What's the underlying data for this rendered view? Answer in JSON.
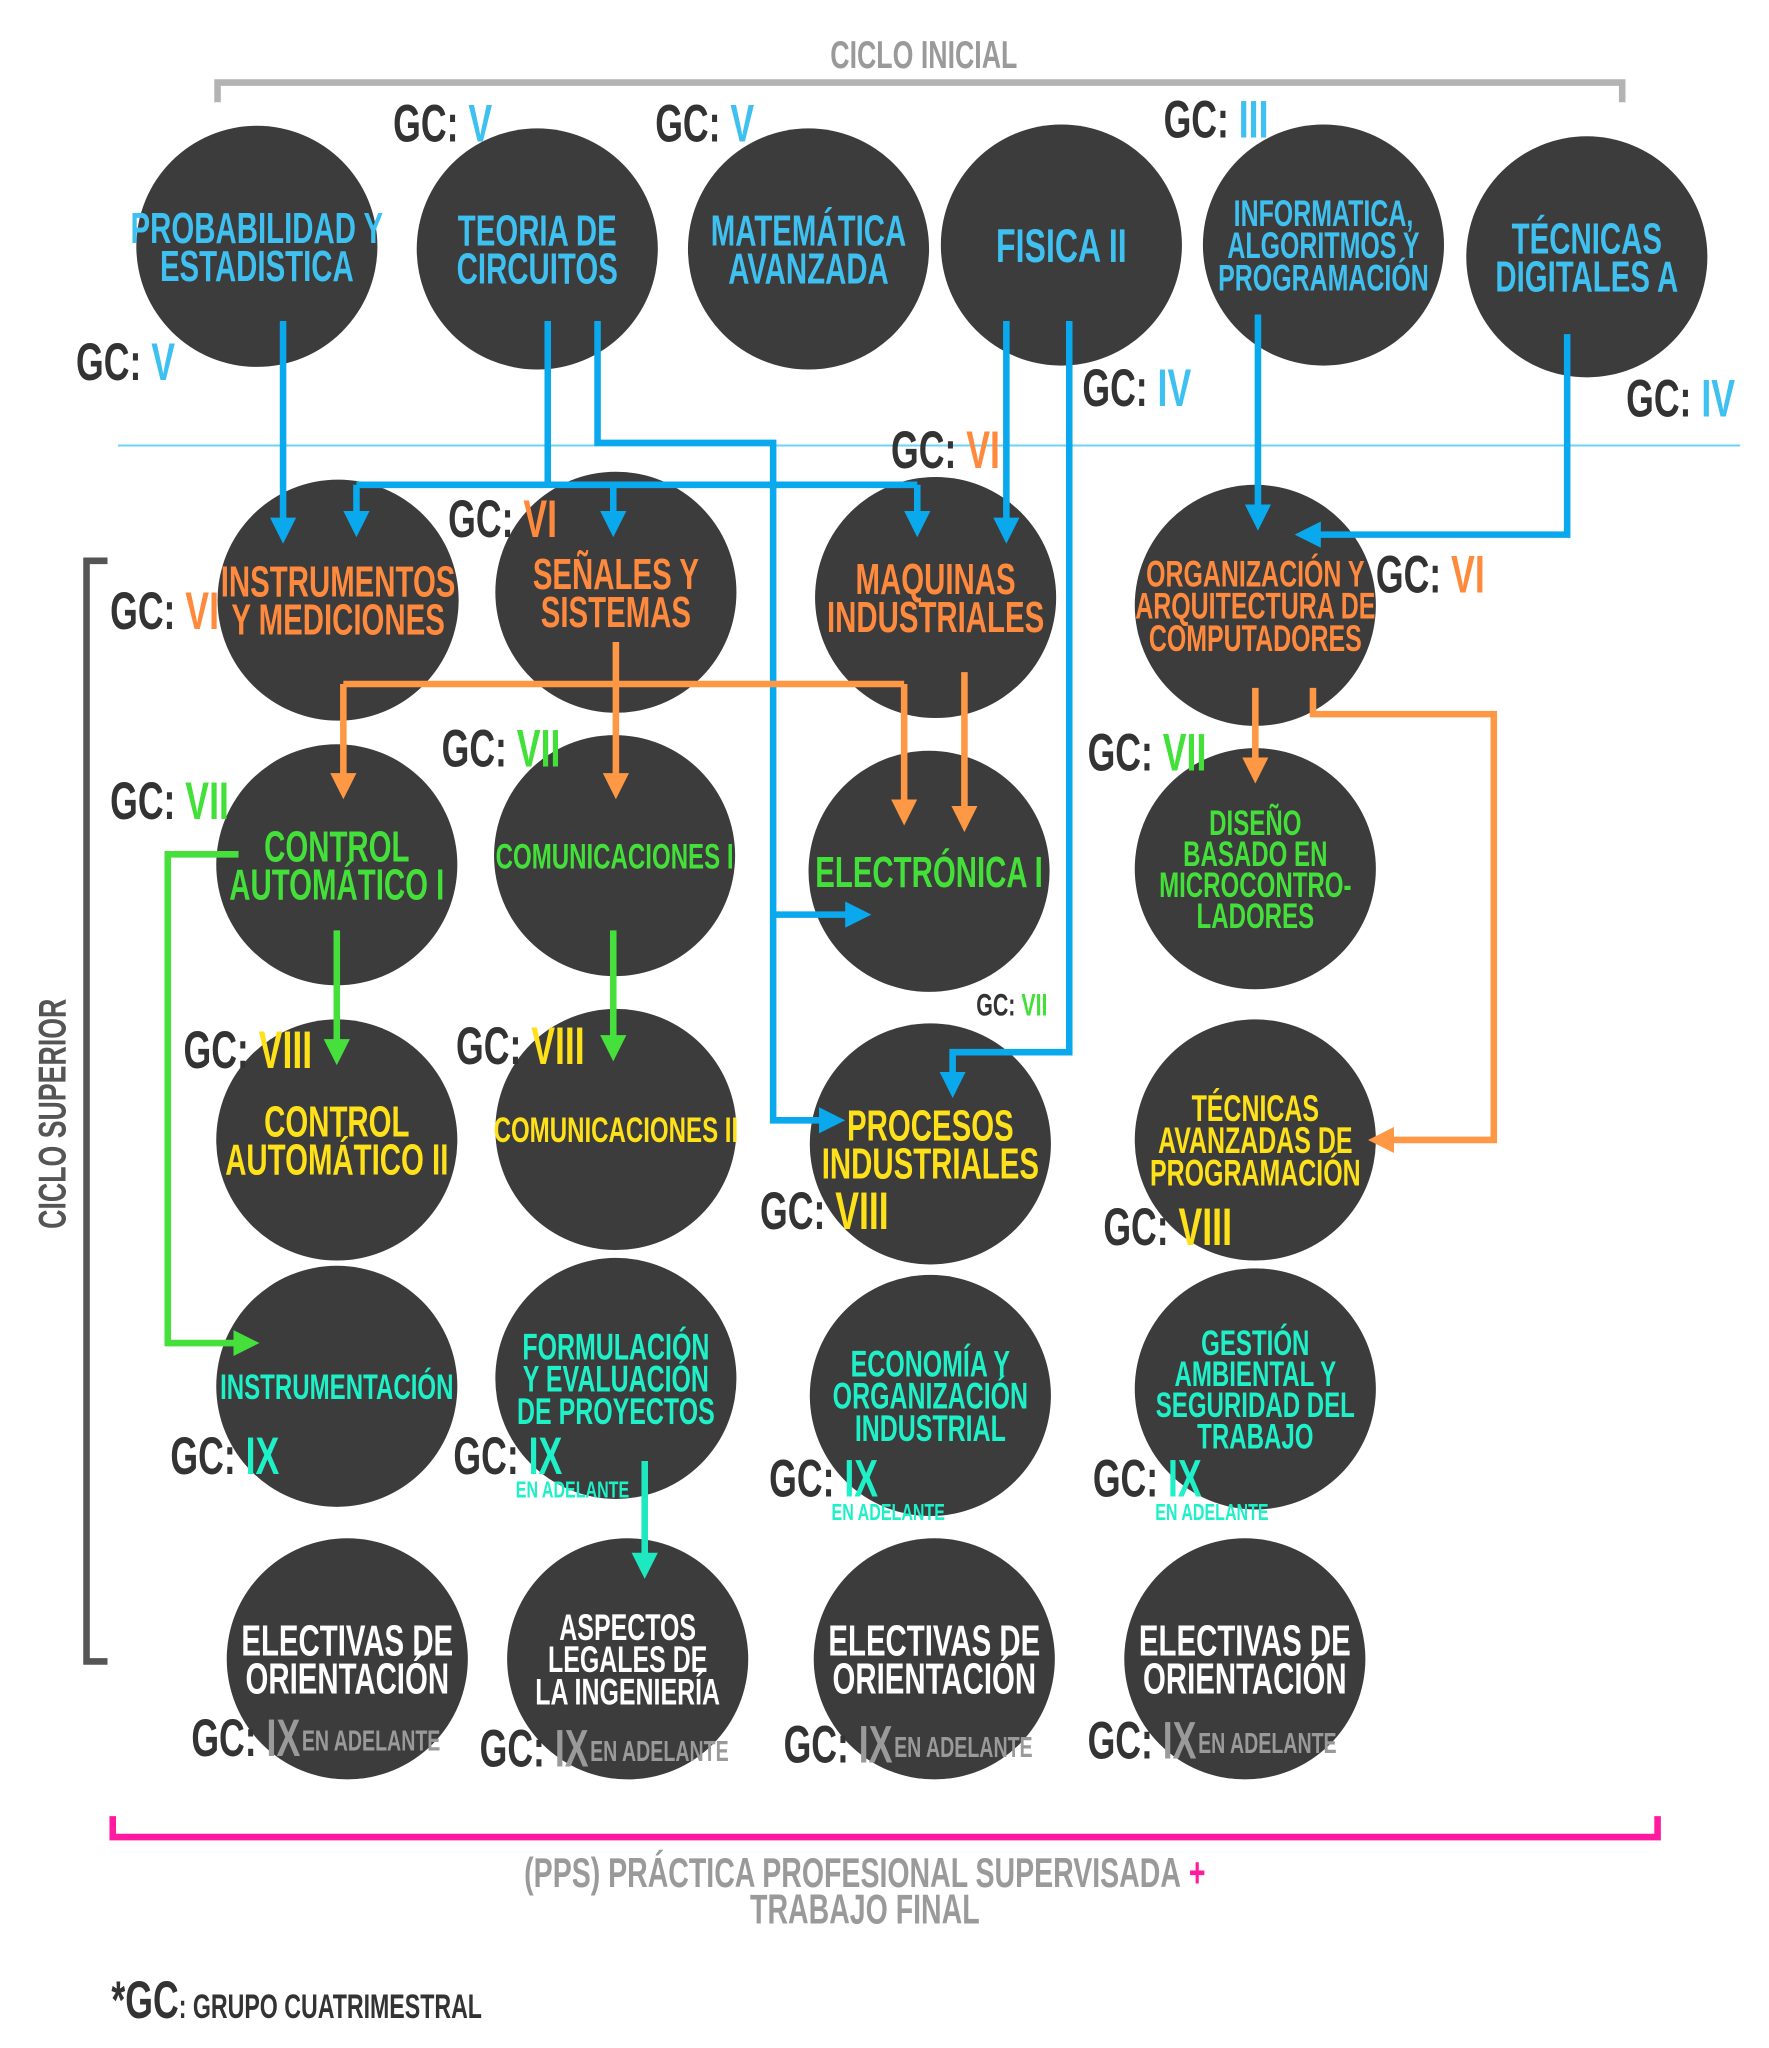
{
  "colors": {
    "circle": "#3c3c3c",
    "gc_prefix": "#333333",
    "blue": "#3ec1f0",
    "blue_line": "#0aa8ec",
    "orange": "#ff8a3d",
    "green": "#44e03a",
    "yellow": "#ffe11a",
    "teal": "#1ef0c8",
    "white": "#ffffff",
    "gray": "#9a9a9a",
    "bracket_top": "#b3b3b3",
    "bracket_left": "#555555",
    "bracket_pps": "#ff1aa0"
  },
  "labels": {
    "ciclo_inicial": "CICLO INICIAL",
    "ciclo_superior": "CICLO SUPERIOR",
    "pps_line1": "(PPS) PRÁCTICA PROFESIONAL SUPERVISADA",
    "pps_plus": "+",
    "pps_line2": "TRABAJO FINAL",
    "footnote_prefix": "*GC",
    "footnote_text": ": GRUPO CUATRIMESTRAL",
    "gc_prefix": "GC: ",
    "en_adelante": "EN ADELANTE"
  },
  "nodes": [
    {
      "id": "probabilidad",
      "lines": [
        "PROBABILIDAD Y",
        "ESTADISTICA"
      ],
      "color": "blue",
      "gc": "V"
    },
    {
      "id": "teoria-circuitos",
      "lines": [
        "TEORIA DE",
        "CIRCUITOS"
      ],
      "color": "blue",
      "gc": "V"
    },
    {
      "id": "matematica-avanzada",
      "lines": [
        "MATEMÁTICA",
        "AVANZADA"
      ],
      "color": "blue",
      "gc": "V"
    },
    {
      "id": "fisica-ii",
      "lines": [
        "FISICA II"
      ],
      "color": "blue",
      "gc": "IV"
    },
    {
      "id": "informatica",
      "lines": [
        "INFORMATICA,",
        "ALGORITMOS Y",
        "PROGRAMACIÓN"
      ],
      "color": "blue",
      "gc": "III"
    },
    {
      "id": "tecnicas-digitales-a",
      "lines": [
        "TÉCNICAS",
        "DIGITALES A"
      ],
      "color": "blue",
      "gc": "IV"
    },
    {
      "id": "instrumentos-mediciones",
      "lines": [
        "INSTRUMENTOS",
        "Y MEDICIONES"
      ],
      "color": "orange",
      "gc": "VI"
    },
    {
      "id": "senales-sistemas",
      "lines": [
        "SEÑALES Y",
        "SISTEMAS"
      ],
      "color": "orange",
      "gc": "VI"
    },
    {
      "id": "maquinas-industriales",
      "lines": [
        "MAQUINAS",
        "INDUSTRIALES"
      ],
      "color": "orange",
      "gc": "VI"
    },
    {
      "id": "organizacion-arquitectura",
      "lines": [
        "ORGANIZACIÓN Y",
        "ARQUITECTURA DE",
        "COMPUTADORES"
      ],
      "color": "orange",
      "gc": "VI"
    },
    {
      "id": "control-automatico-i",
      "lines": [
        "CONTROL",
        "AUTOMÁTICO I"
      ],
      "color": "green",
      "gc": "VII"
    },
    {
      "id": "comunicaciones-i",
      "lines": [
        "COMUNICACIONES I"
      ],
      "color": "green",
      "gc": "VII"
    },
    {
      "id": "electronica-i",
      "lines": [
        "ELECTRÓNICA I"
      ],
      "color": "green",
      "gc": "VII"
    },
    {
      "id": "diseno-microcontroladores",
      "lines": [
        "DISEÑO",
        "BASADO EN",
        "MICROCONTRO-",
        "LADORES"
      ],
      "color": "green",
      "gc": "VII"
    },
    {
      "id": "control-automatico-ii",
      "lines": [
        "CONTROL",
        "AUTOMÁTICO II"
      ],
      "color": "yellow",
      "gc": "VIII"
    },
    {
      "id": "comunicaciones-ii",
      "lines": [
        "COMUNICACIONES II"
      ],
      "color": "yellow",
      "gc": "VIII"
    },
    {
      "id": "procesos-industriales",
      "lines": [
        "PROCESOS",
        "INDUSTRIALES"
      ],
      "color": "yellow",
      "gc": "VIII"
    },
    {
      "id": "tecnicas-avanzadas-programacion",
      "lines": [
        "TÉCNICAS",
        "AVANZADAS DE",
        "PROGRAMACIÓN"
      ],
      "color": "yellow",
      "gc": "VIII"
    },
    {
      "id": "instrumentacion",
      "lines": [
        "INSTRUMENTACIÓN"
      ],
      "color": "teal",
      "gc": "IX"
    },
    {
      "id": "formulacion-proyectos",
      "lines": [
        "FORMULACIÓN",
        "Y EVALUACIÓN",
        "DE PROYECTOS"
      ],
      "color": "teal",
      "gc": "IX",
      "en_adelante": true
    },
    {
      "id": "economia-organizacion",
      "lines": [
        "ECONOMÍA Y",
        "ORGANIZACIÓN",
        "INDUSTRIAL"
      ],
      "color": "teal",
      "gc": "IX",
      "en_adelante": true
    },
    {
      "id": "gestion-ambiental",
      "lines": [
        "GESTIÓN",
        "AMBIENTAL Y",
        "SEGURIDAD DEL",
        "TRABAJO"
      ],
      "color": "teal",
      "gc": "IX",
      "en_adelante": true
    },
    {
      "id": "electivas-1",
      "lines": [
        "ELECTIVAS DE",
        "ORIENTACIÓN"
      ],
      "color": "white",
      "gc": "IX",
      "gc_color": "gray",
      "en_adelante": true
    },
    {
      "id": "aspectos-legales",
      "lines": [
        "ASPECTOS",
        "LEGALES DE",
        "LA INGENIERÍA"
      ],
      "color": "white",
      "gc": "IX",
      "gc_color": "gray",
      "en_adelante": true
    },
    {
      "id": "electivas-2",
      "lines": [
        "ELECTIVAS DE",
        "ORIENTACIÓN"
      ],
      "color": "white",
      "gc": "IX",
      "gc_color": "gray",
      "en_adelante": true
    },
    {
      "id": "electivas-3",
      "lines": [
        "ELECTIVAS DE",
        "ORIENTACIÓN"
      ],
      "color": "white",
      "gc": "IX",
      "gc_color": "gray",
      "en_adelante": true
    }
  ]
}
